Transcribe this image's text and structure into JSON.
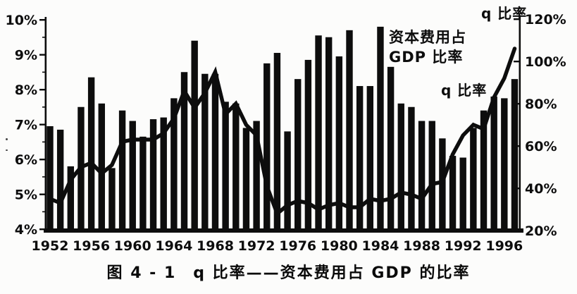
{
  "figure": {
    "caption": "图 4 - 1　q 比率——资本费用占 GDP 的比率",
    "annotation_capital_label": "资本费用占\nGDP 比率",
    "annotation_q_line_label": "q 比率",
    "right_axis_title": "q 比率"
  },
  "colors": {
    "ink": "#0d0d0d",
    "paper": "#fcfcfb"
  },
  "chart_data": {
    "type": "bar",
    "title": "q 比率——资本费用占 GDP 的比率",
    "x": [
      1952,
      1953,
      1954,
      1955,
      1956,
      1957,
      1958,
      1959,
      1960,
      1961,
      1962,
      1963,
      1964,
      1965,
      1966,
      1967,
      1968,
      1969,
      1970,
      1971,
      1972,
      1973,
      1974,
      1975,
      1976,
      1977,
      1978,
      1979,
      1980,
      1981,
      1982,
      1983,
      1984,
      1985,
      1986,
      1987,
      1988,
      1989,
      1990,
      1991,
      1992,
      1993,
      1994,
      1995,
      1996,
      1997
    ],
    "series": [
      {
        "name": "资本费用占 GDP 比率",
        "type": "bar",
        "axis": "left",
        "unit": "%",
        "values": [
          6.95,
          6.85,
          5.8,
          7.5,
          8.35,
          7.6,
          5.75,
          7.4,
          7.1,
          6.65,
          7.15,
          7.2,
          7.75,
          8.5,
          9.4,
          8.45,
          8.45,
          7.65,
          7.6,
          6.9,
          7.1,
          8.75,
          9.05,
          6.8,
          8.3,
          8.85,
          9.55,
          9.5,
          8.95,
          9.7,
          8.1,
          8.1,
          9.8,
          8.65,
          7.6,
          7.5,
          7.1,
          7.1,
          6.6,
          6.1,
          6.05,
          6.9,
          7.4,
          7.8,
          7.75,
          8.3
        ]
      },
      {
        "name": "q 比率",
        "type": "line",
        "axis": "right",
        "unit": "%",
        "values": [
          35,
          33,
          44,
          50,
          52,
          47,
          51,
          62,
          63,
          63,
          63,
          66,
          73,
          86,
          78,
          85,
          95,
          75,
          80,
          70,
          65,
          41,
          28,
          32,
          34,
          33,
          30,
          32,
          33,
          31,
          31,
          35,
          34,
          35,
          38,
          37,
          35,
          42,
          43,
          56,
          65,
          70,
          68,
          83,
          92,
          106
        ]
      }
    ],
    "left_axis": {
      "min": 4,
      "max": 10,
      "tick_values": [
        10,
        9,
        8,
        7,
        6,
        5,
        4
      ],
      "tick_labels": [
        "10%",
        "9%",
        "8%",
        "7%",
        "6%",
        "5%",
        "4%"
      ]
    },
    "right_axis": {
      "min": 20,
      "max": 120,
      "tick_values": [
        120,
        100,
        80,
        60,
        40,
        20
      ],
      "tick_labels": [
        "120%",
        "100%",
        "80%",
        "60%",
        "40%",
        "20%"
      ]
    },
    "x_axis": {
      "tick_years": [
        1952,
        1956,
        1960,
        1964,
        1968,
        1972,
        1976,
        1980,
        1984,
        1988,
        1992,
        1996
      ],
      "tick_labels": [
        "1952",
        "1956",
        "1960",
        "1964",
        "1968",
        "1972",
        "1976",
        "1980",
        "1984",
        "1988",
        "1992",
        "1996"
      ]
    },
    "legend_position": "annotations-inside-plot",
    "grid": false
  }
}
